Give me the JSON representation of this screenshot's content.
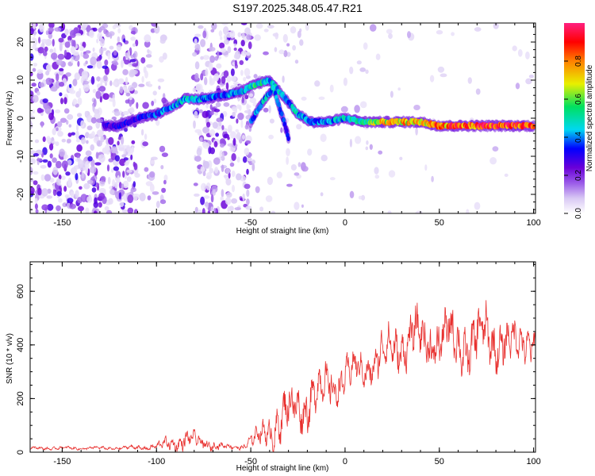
{
  "figure": {
    "title": "S197.2025.348.05.47.R21"
  },
  "chart_data": [
    {
      "type": "heatmap",
      "xlabel": "Height of straight line (km)",
      "ylabel": "Frequency (Hz)",
      "xlim": [
        -167,
        101
      ],
      "ylim": [
        -25,
        25
      ],
      "xticks": [
        -150,
        -100,
        -50,
        0,
        50,
        100
      ],
      "yticks": [
        20,
        10,
        0,
        -10,
        -20
      ],
      "colorbar": {
        "label": "Normalized spectral amplitude",
        "range": [
          0,
          1
        ],
        "ticks": [
          0.0,
          0.2,
          0.4,
          0.6,
          0.8
        ],
        "colormap": [
          "#ffffff",
          "#d8c8f4",
          "#9a5ae8",
          "#6a00d8",
          "#0000ff",
          "#00d8f0",
          "#00e060",
          "#e8f000",
          "#ff8000",
          "#ff0000",
          "#ff2080"
        ]
      },
      "ridge": {
        "description": "dominant frequency track vs height",
        "points": [
          {
            "x": -128,
            "y": -2,
            "a": 0.35
          },
          {
            "x": -120,
            "y": -2,
            "a": 0.4
          },
          {
            "x": -110,
            "y": 0,
            "a": 0.4
          },
          {
            "x": -100,
            "y": 1,
            "a": 0.45
          },
          {
            "x": -92,
            "y": 3,
            "a": 0.5
          },
          {
            "x": -85,
            "y": 5,
            "a": 0.55
          },
          {
            "x": -75,
            "y": 5,
            "a": 0.5
          },
          {
            "x": -65,
            "y": 6,
            "a": 0.45
          },
          {
            "x": -55,
            "y": 7,
            "a": 0.55
          },
          {
            "x": -47,
            "y": 9,
            "a": 0.6
          },
          {
            "x": -40,
            "y": 10,
            "a": 0.55
          },
          {
            "x": -33,
            "y": 6,
            "a": 0.5
          },
          {
            "x": -25,
            "y": 1,
            "a": 0.55
          },
          {
            "x": -18,
            "y": -1,
            "a": 0.45
          },
          {
            "x": -10,
            "y": -1,
            "a": 0.5
          },
          {
            "x": 0,
            "y": 0,
            "a": 0.55
          },
          {
            "x": 10,
            "y": -1,
            "a": 0.6
          },
          {
            "x": 20,
            "y": -1,
            "a": 0.75
          },
          {
            "x": 30,
            "y": -1,
            "a": 0.8
          },
          {
            "x": 40,
            "y": -1,
            "a": 0.8
          },
          {
            "x": 50,
            "y": -2,
            "a": 0.85
          },
          {
            "x": 60,
            "y": -2,
            "a": 0.9
          },
          {
            "x": 70,
            "y": -2,
            "a": 0.9
          },
          {
            "x": 80,
            "y": -2,
            "a": 0.95
          },
          {
            "x": 90,
            "y": -2,
            "a": 0.95
          },
          {
            "x": 100,
            "y": -2,
            "a": 0.9
          }
        ],
        "branch": [
          {
            "x": -50,
            "y": -1,
            "a": 0.5
          },
          {
            "x": -44,
            "y": 4,
            "a": 0.5
          },
          {
            "x": -38,
            "y": 8,
            "a": 0.55
          },
          {
            "x": -33,
            "y": 0,
            "a": 0.45
          },
          {
            "x": -30,
            "y": -5,
            "a": 0.4
          }
        ]
      }
    },
    {
      "type": "line",
      "xlabel": "Height of straight line (km)",
      "ylabel": "SNR (10 * v/v)",
      "xlim": [
        -167,
        101
      ],
      "ylim": [
        0,
        710
      ],
      "xticks": [
        -150,
        -100,
        -50,
        0,
        50,
        100
      ],
      "yticks": [
        0,
        200,
        400,
        600
      ],
      "series": [
        {
          "name": "SNR",
          "color": "#e8302e",
          "envelope": {
            "x": [
              -167,
              -150,
              -120,
              -100,
              -95,
              -85,
              -75,
              -65,
              -55,
              -45,
              -35,
              -25,
              -15,
              -5,
              5,
              15,
              25,
              35,
              45,
              55,
              65,
              72,
              80,
              90,
              101
            ],
            "base": [
              15,
              15,
              15,
              20,
              30,
              45,
              35,
              20,
              20,
              60,
              120,
              170,
              220,
              260,
              300,
              330,
              390,
              420,
              420,
              420,
              400,
              420,
              420,
              400,
              430
            ],
            "amp": [
              10,
              10,
              10,
              20,
              40,
              60,
              45,
              20,
              15,
              70,
              150,
              160,
              150,
              130,
              110,
              120,
              150,
              160,
              170,
              180,
              180,
              200,
              170,
              140,
              120
            ]
          }
        }
      ]
    }
  ]
}
